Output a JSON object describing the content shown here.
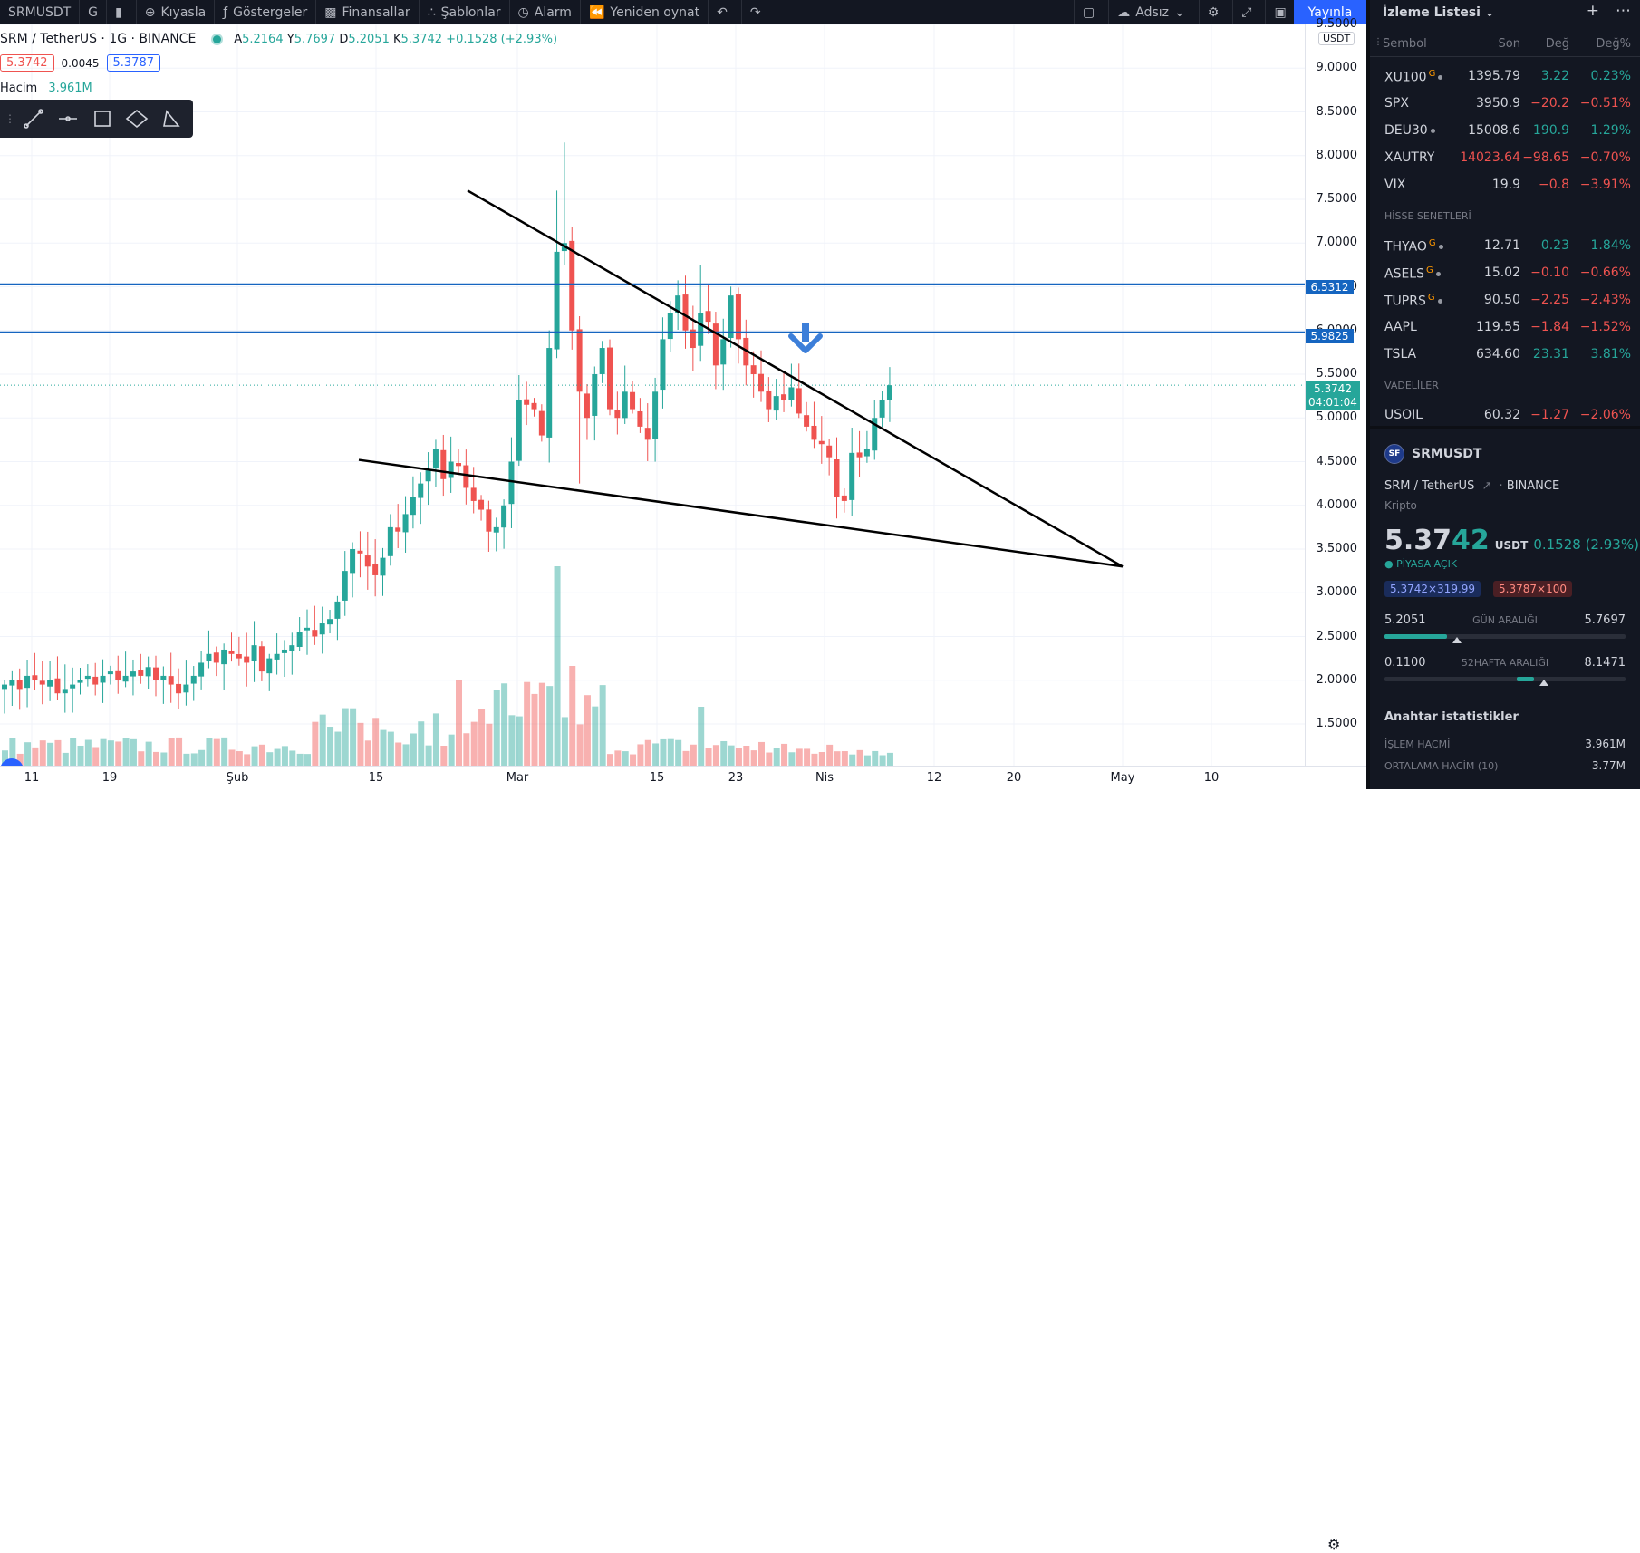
{
  "toolbar": {
    "symbol": "SRMUSDT",
    "interval": "G",
    "compare": "Kıyasla",
    "indicators": "Göstergeler",
    "financials": "Finansallar",
    "templates": "Şablonlar",
    "alert": "Alarm",
    "replay": "Yeniden oynat",
    "layout_name": "Adsız",
    "publish": "Yayınla"
  },
  "legend": {
    "title": "SRM / TetherUS · 1G · BINANCE",
    "open_label": "A",
    "open": "5.2164",
    "high_label": "Y",
    "high": "5.7697",
    "low_label": "D",
    "low": "5.2051",
    "close_label": "K",
    "close": "5.3742",
    "change": "+0.1528 (+2.93%)",
    "bid": "5.3742",
    "spread": "0.0045",
    "ask": "5.3787",
    "volume_label": "Hacim",
    "volume": "3.961M"
  },
  "price_axis": {
    "currency": "USDT",
    "ticks": [
      "9.5000",
      "9.0000",
      "8.5000",
      "8.0000",
      "7.5000",
      "7.0000",
      "6.5000",
      "6.0000",
      "5.5000",
      "5.0000",
      "4.5000",
      "4.0000",
      "3.5000",
      "3.0000",
      "2.5000",
      "2.0000",
      "1.5000"
    ],
    "level1": "6.5312",
    "level2": "5.9825",
    "current": "5.3742",
    "countdown": "04:01:04"
  },
  "time_axis": [
    "11",
    "19",
    "Şub",
    "15",
    "Mar",
    "15",
    "23",
    "Nis",
    "12",
    "20",
    "May",
    "10"
  ],
  "chart_data": {
    "type": "candlestick",
    "symbol": "SRM / TetherUS",
    "exchange": "BINANCE",
    "interval": "1G",
    "ylim": [
      1.2,
      9.6
    ],
    "horizontal_lines": [
      6.5312,
      5.9825
    ],
    "current_price": 5.3742,
    "candles_approx": [
      {
        "date": "2021-02-09",
        "open": 4.05,
        "close": 4.65
      },
      {
        "date": "2021-02-10",
        "open": 4.5,
        "close": 4.2
      },
      {
        "date": "2021-02-12",
        "open": 4.15,
        "close": 4.45
      },
      {
        "date": "2021-02-14",
        "open": 4.4,
        "close": 4.1
      },
      {
        "date": "2021-02-16",
        "open": 3.9,
        "close": 3.65
      },
      {
        "date": "2021-02-19",
        "open": 3.7,
        "close": 4.5
      },
      {
        "date": "2021-02-20",
        "open": 4.5,
        "close": 5.2
      },
      {
        "date": "2021-02-22",
        "open": 4.6,
        "close": 5.1
      },
      {
        "date": "2021-02-24",
        "open": 5.8,
        "close": 6.9
      },
      {
        "date": "2021-02-25",
        "open": 6.95,
        "close": 7.0
      },
      {
        "date": "2021-02-26",
        "open": 6.9,
        "close": 6.0
      },
      {
        "date": "2021-02-28",
        "open": 5.9,
        "close": 5.3
      },
      {
        "date": "2021-03-02",
        "open": 5.0,
        "close": 5.8
      },
      {
        "date": "2021-03-05",
        "open": 5.2,
        "close": 4.9
      },
      {
        "date": "2021-03-08",
        "open": 5.2,
        "close": 6.0
      },
      {
        "date": "2021-03-10",
        "open": 6.4,
        "close": 5.9
      },
      {
        "date": "2021-03-13",
        "open": 5.8,
        "close": 6.2
      },
      {
        "date": "2021-03-15",
        "open": 6.1,
        "close": 5.6
      },
      {
        "date": "2021-03-18",
        "open": 5.4,
        "close": 5.1
      },
      {
        "date": "2021-03-21",
        "open": 5.3,
        "close": 5.0
      },
      {
        "date": "2021-03-24",
        "open": 4.9,
        "close": 4.6
      },
      {
        "date": "2021-03-26",
        "open": 4.45,
        "close": 4.1
      },
      {
        "date": "2021-03-27",
        "open": 4.05,
        "close": 4.6
      },
      {
        "date": "2021-03-29",
        "open": 4.6,
        "close": 5.0
      },
      {
        "date": "2021-03-31",
        "open": 5.2,
        "close": 5.3742
      }
    ],
    "trendlines": [
      {
        "name": "upper",
        "from": {
          "date": "2021-02-24",
          "price": 7.6
        },
        "to": {
          "date": "2021-05-01",
          "price": 3.3
        }
      },
      {
        "name": "lower",
        "from": {
          "date": "2021-02-13",
          "price": 4.52
        },
        "to": {
          "date": "2021-05-01",
          "price": 3.3
        }
      }
    ],
    "annotation": "down-arrow at 2021-04-01"
  },
  "watchlist": {
    "title": "İzleme Listesi",
    "columns": {
      "symbol": "Sembol",
      "last": "Son",
      "change": "Değ",
      "change_pct": "Değ%"
    },
    "rows_top": [
      {
        "sym": "XU100",
        "tag": "G",
        "last": "1395.79",
        "chg": "3.22",
        "pct": "0.23%",
        "dir": "pos"
      },
      {
        "sym": "SPX",
        "tag": "",
        "last": "3950.9",
        "chg": "−20.2",
        "pct": "−0.51%",
        "dir": "neg"
      },
      {
        "sym": "DEU30",
        "tag": "",
        "last": "15008.6",
        "chg": "190.9",
        "pct": "1.29%",
        "dir": "pos"
      },
      {
        "sym": "XAUTRY",
        "tag": "",
        "last": "14023.64",
        "chg": "−98.65",
        "pct": "−0.70%",
        "dir": "neg"
      },
      {
        "sym": "VIX",
        "tag": "",
        "last": "19.9",
        "chg": "−0.8",
        "pct": "−3.91%",
        "dir": "neg"
      }
    ],
    "section_stocks": "HİSSE SENETLERİ",
    "rows_stocks": [
      {
        "sym": "THYAO",
        "tag": "G",
        "last": "12.71",
        "chg": "0.23",
        "pct": "1.84%",
        "dir": "pos"
      },
      {
        "sym": "ASELS",
        "tag": "G",
        "last": "15.02",
        "chg": "−0.10",
        "pct": "−0.66%",
        "dir": "neg"
      },
      {
        "sym": "TUPRS",
        "tag": "G",
        "last": "90.50",
        "chg": "−2.25",
        "pct": "−2.43%",
        "dir": "neg"
      },
      {
        "sym": "AAPL",
        "tag": "",
        "last": "119.55",
        "chg": "−1.84",
        "pct": "−1.52%",
        "dir": "neg"
      },
      {
        "sym": "TSLA",
        "tag": "",
        "last": "634.60",
        "chg": "23.31",
        "pct": "3.81%",
        "dir": "pos"
      }
    ],
    "section_futures": "VADELİLER",
    "rows_futures": [
      {
        "sym": "USOIL",
        "tag": "",
        "last": "60.32",
        "chg": "−1.27",
        "pct": "−2.06%",
        "dir": "neg"
      }
    ]
  },
  "details": {
    "symbol": "SRMUSDT",
    "name": "SRM / TetherUS",
    "exchange": "BINANCE",
    "type": "Kripto",
    "price_main": "5.37",
    "price_hl": "42",
    "currency": "USDT",
    "change": "0.1528 (2.93%)",
    "status": "PİYASA AÇIK",
    "bid": "5.3742×319.99",
    "ask": "5.3787×100",
    "day_range": {
      "low": "5.2051",
      "label": "GÜN ARALIĞI",
      "high": "5.7697",
      "fill_start": 0.0,
      "fill_end": 0.26,
      "marker": 0.3
    },
    "week_range": {
      "low": "0.1100",
      "label": "52HAFTA ARALIĞI",
      "high": "8.1471",
      "fill_start": 0.55,
      "fill_end": 0.62,
      "marker": 0.66
    },
    "key_stats_title": "Anahtar istatistikler",
    "volume_label": "İŞLEM HACMİ",
    "volume": "3.961M",
    "avg_volume_label": "ORTALAMA HACİM (10)",
    "avg_volume": "3.77M"
  }
}
